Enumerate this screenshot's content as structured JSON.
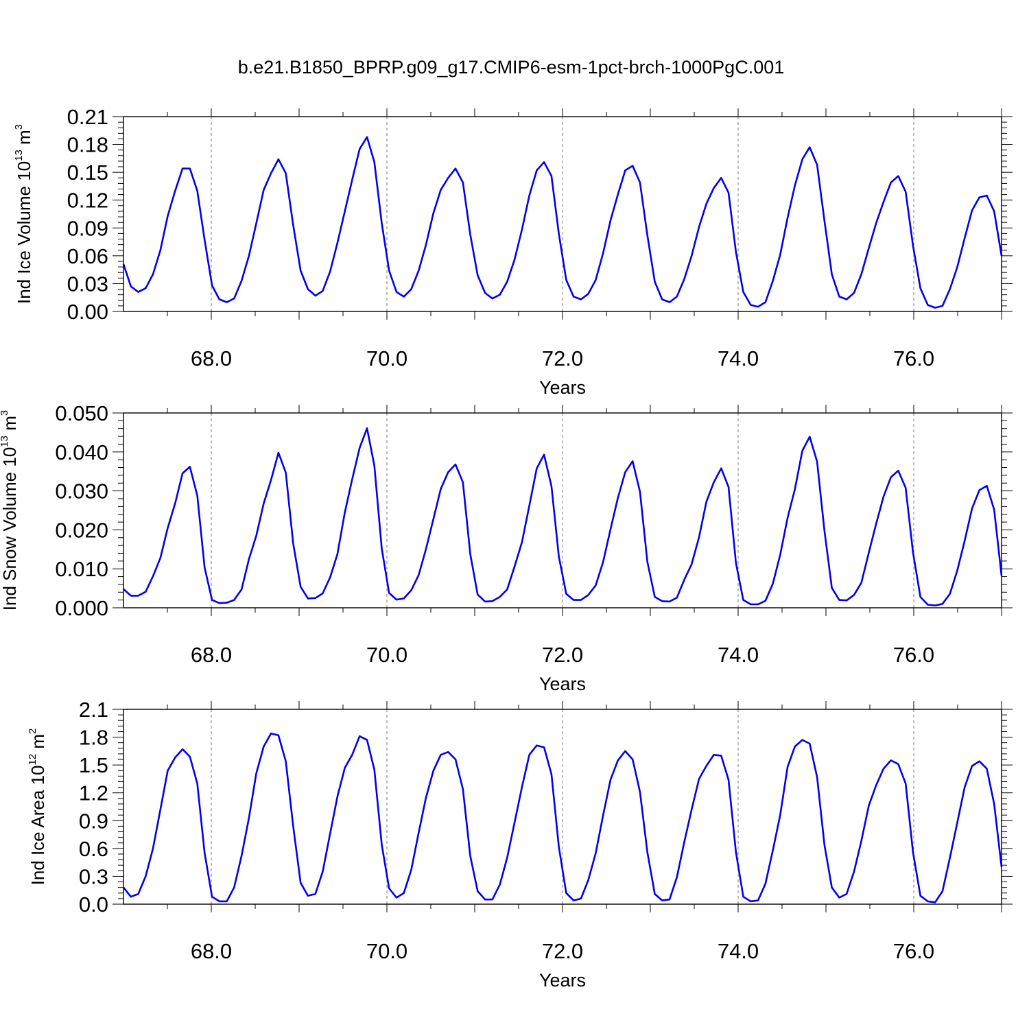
{
  "figure": {
    "title": "b.e21.B1850_BPRP.g09_g17.CMIP6-esm-1pct-brch-1000PgC.001",
    "line_color": "#0000ee"
  },
  "chart_data": [
    {
      "type": "line",
      "xlabel": "Years",
      "ylabel": "Ind Ice Volume 10",
      "ylabel_exp": "13",
      "ylabel_unit": "m",
      "ylabel_unit_exp": "3",
      "xlim": [
        67.0,
        77.0
      ],
      "ylim": [
        0.0,
        0.21
      ],
      "xticks": [
        68.0,
        70.0,
        72.0,
        74.0,
        76.0
      ],
      "xticklabels": [
        "68.0",
        "70.0",
        "72.0",
        "74.0",
        "76.0"
      ],
      "yticks": [
        0.0,
        0.03,
        0.06,
        0.09,
        0.12,
        0.15,
        0.18,
        0.21
      ],
      "yticklabels": [
        "0.00",
        "0.03",
        "0.06",
        "0.09",
        "0.12",
        "0.15",
        "0.18",
        "0.21"
      ],
      "vgrid": [
        68.0,
        70.0,
        72.0,
        74.0,
        76.0
      ],
      "series": [
        {
          "values": [
            0.051,
            0.027,
            0.021,
            0.025,
            0.04,
            0.066,
            0.103,
            0.13,
            0.154,
            0.154,
            0.13,
            0.077,
            0.028,
            0.013,
            0.01,
            0.014,
            0.033,
            0.06,
            0.095,
            0.131,
            0.149,
            0.164,
            0.149,
            0.093,
            0.044,
            0.024,
            0.017,
            0.022,
            0.043,
            0.074,
            0.108,
            0.142,
            0.175,
            0.188,
            0.161,
            0.095,
            0.044,
            0.021,
            0.016,
            0.024,
            0.044,
            0.072,
            0.106,
            0.131,
            0.144,
            0.154,
            0.139,
            0.083,
            0.039,
            0.02,
            0.014,
            0.018,
            0.032,
            0.056,
            0.088,
            0.125,
            0.152,
            0.161,
            0.146,
            0.084,
            0.034,
            0.016,
            0.013,
            0.019,
            0.034,
            0.063,
            0.098,
            0.126,
            0.152,
            0.157,
            0.139,
            0.082,
            0.032,
            0.013,
            0.01,
            0.016,
            0.035,
            0.06,
            0.091,
            0.116,
            0.133,
            0.144,
            0.128,
            0.064,
            0.021,
            0.007,
            0.005,
            0.01,
            0.033,
            0.061,
            0.101,
            0.136,
            0.164,
            0.177,
            0.158,
            0.098,
            0.04,
            0.016,
            0.013,
            0.02,
            0.04,
            0.068,
            0.095,
            0.118,
            0.139,
            0.146,
            0.129,
            0.071,
            0.025,
            0.007,
            0.004,
            0.006,
            0.024,
            0.048,
            0.079,
            0.109,
            0.123,
            0.125,
            0.108,
            0.06
          ]
        }
      ]
    },
    {
      "type": "line",
      "xlabel": "Years",
      "ylabel": "Ind Snow Volume 10",
      "ylabel_exp": "13",
      "ylabel_unit": "m",
      "ylabel_unit_exp": "3",
      "xlim": [
        67.0,
        77.0
      ],
      "ylim": [
        0.0,
        0.05
      ],
      "xticks": [
        68.0,
        70.0,
        72.0,
        74.0,
        76.0
      ],
      "xticklabels": [
        "68.0",
        "70.0",
        "72.0",
        "74.0",
        "76.0"
      ],
      "yticks": [
        0.0,
        0.01,
        0.02,
        0.03,
        0.04,
        0.05
      ],
      "yticklabels": [
        "0.000",
        "0.010",
        "0.020",
        "0.030",
        "0.040",
        "0.050"
      ],
      "vgrid": [
        68.0,
        70.0,
        72.0,
        74.0,
        76.0
      ],
      "series": [
        {
          "values": [
            0.0048,
            0.0031,
            0.0031,
            0.0041,
            0.0081,
            0.0128,
            0.0205,
            0.0268,
            0.0345,
            0.0362,
            0.0288,
            0.0103,
            0.002,
            0.0012,
            0.0013,
            0.002,
            0.0047,
            0.0125,
            0.0185,
            0.0268,
            0.0328,
            0.0398,
            0.0347,
            0.0165,
            0.0054,
            0.0024,
            0.0025,
            0.0037,
            0.0078,
            0.0138,
            0.0245,
            0.033,
            0.041,
            0.0461,
            0.0365,
            0.0152,
            0.0038,
            0.0021,
            0.0024,
            0.0045,
            0.0084,
            0.0151,
            0.0228,
            0.0305,
            0.0348,
            0.0368,
            0.0322,
            0.0138,
            0.0034,
            0.0016,
            0.0017,
            0.0028,
            0.0047,
            0.0106,
            0.0168,
            0.0262,
            0.0358,
            0.0393,
            0.0312,
            0.0132,
            0.0036,
            0.002,
            0.002,
            0.0033,
            0.0058,
            0.0118,
            0.0201,
            0.0282,
            0.0348,
            0.0376,
            0.0298,
            0.0118,
            0.0028,
            0.0017,
            0.0016,
            0.0026,
            0.0072,
            0.0112,
            0.0181,
            0.0272,
            0.0322,
            0.0358,
            0.031,
            0.0115,
            0.002,
            0.0009,
            0.0009,
            0.0018,
            0.0062,
            0.0136,
            0.0231,
            0.0305,
            0.0403,
            0.0439,
            0.0375,
            0.0198,
            0.0051,
            0.002,
            0.0019,
            0.0033,
            0.0064,
            0.0141,
            0.0215,
            0.0285,
            0.0335,
            0.0352,
            0.0308,
            0.0142,
            0.0028,
            0.0008,
            0.0006,
            0.001,
            0.0036,
            0.0096,
            0.0172,
            0.0255,
            0.0302,
            0.0313,
            0.0252,
            0.0082
          ]
        }
      ]
    },
    {
      "type": "line",
      "xlabel": "Years",
      "ylabel": "Ind Ice Area 10",
      "ylabel_exp": "12",
      "ylabel_unit": "m",
      "ylabel_unit_exp": "2",
      "xlim": [
        67.0,
        77.0
      ],
      "ylim": [
        0.0,
        2.1
      ],
      "xticks": [
        68.0,
        70.0,
        72.0,
        74.0,
        76.0
      ],
      "xticklabels": [
        "68.0",
        "70.0",
        "72.0",
        "74.0",
        "76.0"
      ],
      "yticks": [
        0.0,
        0.3,
        0.6,
        0.9,
        1.2,
        1.5,
        1.8,
        2.1
      ],
      "yticklabels": [
        "0.0",
        "0.3",
        "0.6",
        "0.9",
        "1.2",
        "1.5",
        "1.8",
        "2.1"
      ],
      "vgrid": [
        68.0,
        70.0,
        72.0,
        74.0,
        76.0
      ],
      "series": [
        {
          "values": [
            0.18,
            0.08,
            0.11,
            0.3,
            0.6,
            1.02,
            1.44,
            1.58,
            1.67,
            1.59,
            1.3,
            0.55,
            0.08,
            0.03,
            0.03,
            0.18,
            0.52,
            0.93,
            1.41,
            1.7,
            1.84,
            1.82,
            1.54,
            0.84,
            0.23,
            0.09,
            0.11,
            0.35,
            0.76,
            1.16,
            1.47,
            1.61,
            1.81,
            1.77,
            1.45,
            0.64,
            0.17,
            0.07,
            0.12,
            0.37,
            0.77,
            1.15,
            1.44,
            1.61,
            1.64,
            1.56,
            1.24,
            0.52,
            0.14,
            0.05,
            0.05,
            0.21,
            0.5,
            0.88,
            1.26,
            1.61,
            1.71,
            1.69,
            1.4,
            0.62,
            0.12,
            0.04,
            0.06,
            0.26,
            0.55,
            0.96,
            1.34,
            1.55,
            1.65,
            1.56,
            1.21,
            0.56,
            0.11,
            0.04,
            0.05,
            0.29,
            0.67,
            1.02,
            1.35,
            1.49,
            1.61,
            1.6,
            1.34,
            0.56,
            0.08,
            0.03,
            0.04,
            0.22,
            0.58,
            0.96,
            1.48,
            1.7,
            1.77,
            1.73,
            1.37,
            0.64,
            0.18,
            0.07,
            0.11,
            0.35,
            0.68,
            1.06,
            1.28,
            1.46,
            1.55,
            1.51,
            1.3,
            0.56,
            0.09,
            0.03,
            0.02,
            0.14,
            0.5,
            0.88,
            1.26,
            1.49,
            1.54,
            1.46,
            1.08,
            0.4
          ]
        }
      ]
    }
  ]
}
